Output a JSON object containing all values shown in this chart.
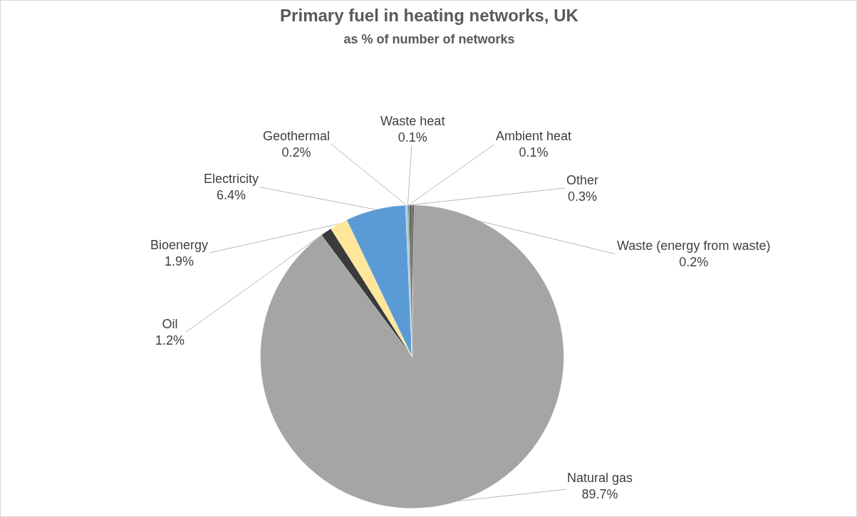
{
  "chart_data": {
    "type": "pie",
    "title": "Primary fuel in heating networks, UK",
    "subtitle": "as % of number of networks",
    "categories": [
      "Waste (energy from waste)",
      "Natural gas",
      "Oil",
      "Bioenergy",
      "Electricity",
      "Geothermal",
      "Waste heat",
      "Ambient heat",
      "Other"
    ],
    "values": [
      0.2,
      89.7,
      1.2,
      1.9,
      6.4,
      0.2,
      0.1,
      0.1,
      0.3
    ],
    "value_labels": [
      "0.2%",
      "89.7%",
      "1.2%",
      "1.9%",
      "6.4%",
      "0.2%",
      "0.1%",
      "0.1%",
      "0.3%"
    ],
    "colors": [
      "#404040",
      "#a5a5a5",
      "#3b3b3b",
      "#ffe699",
      "#5b9bd5",
      "#9dc3e6",
      "#70ad47",
      "#264478",
      "#636363"
    ],
    "legend": false
  }
}
